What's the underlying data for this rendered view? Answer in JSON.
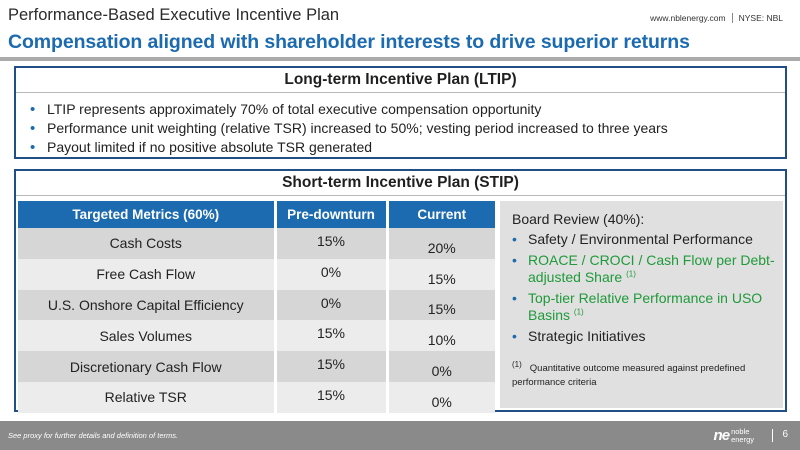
{
  "header": {
    "title": "Performance-Based Executive Incentive Plan",
    "subtitle": "Compensation aligned with shareholder interests to drive superior returns",
    "website": "www.nblenergy.com",
    "ticker": "NYSE: NBL"
  },
  "ltip": {
    "title": "Long-term Incentive Plan (LTIP)",
    "bullets": [
      "LTIP represents approximately 70% of total executive compensation opportunity",
      "Performance unit weighting (relative TSR) increased to 50%; vesting period increased to three years",
      "Payout limited if no positive absolute TSR generated"
    ]
  },
  "stip": {
    "title": "Short-term Incentive Plan (STIP)",
    "columns": [
      "Targeted Metrics (60%)",
      "Pre-downturn",
      "Current"
    ],
    "rows": [
      {
        "metric": "Cash Costs",
        "pre": "15%",
        "current": "20%",
        "trend": "green"
      },
      {
        "metric": "Free Cash Flow",
        "pre": "0%",
        "current": "15%",
        "trend": "green"
      },
      {
        "metric": "U.S. Onshore Capital Efficiency",
        "pre": "0%",
        "current": "15%",
        "trend": "green"
      },
      {
        "metric": "Sales Volumes",
        "pre": "15%",
        "current": "10%",
        "trend": "red"
      },
      {
        "metric": "Discretionary Cash Flow",
        "pre": "15%",
        "current": "0%",
        "trend": "red"
      },
      {
        "metric": "Relative TSR",
        "pre": "15%",
        "current": "0%",
        "trend": "red"
      }
    ],
    "board": {
      "title": "Board Review (40%):",
      "items": [
        {
          "text": "Safety / Environmental Performance",
          "footnote": "",
          "color": "dark"
        },
        {
          "text": "ROACE / CROCI / Cash Flow per Debt-adjusted Share",
          "footnote": "(1)",
          "color": "green"
        },
        {
          "text": "Top-tier Relative Performance in USO Basins",
          "footnote": "(1)",
          "color": "green"
        },
        {
          "text": "Strategic Initiatives",
          "footnote": "",
          "color": "dark"
        }
      ],
      "note_marker": "(1)",
      "note": "Quantitative outcome measured against predefined performance criteria"
    }
  },
  "footer": {
    "note": "See proxy for further details and definition of terms.",
    "logo_mark": "ne",
    "logo_line1": "noble",
    "logo_line2": "energy",
    "page_number": "6"
  },
  "colors": {
    "accent_blue": "#1c6bb0",
    "border_navy": "#1f4f86",
    "positive_green": "#1f9a3a",
    "negative_red": "#c0322b",
    "footer_gray": "#8a8a8a"
  }
}
